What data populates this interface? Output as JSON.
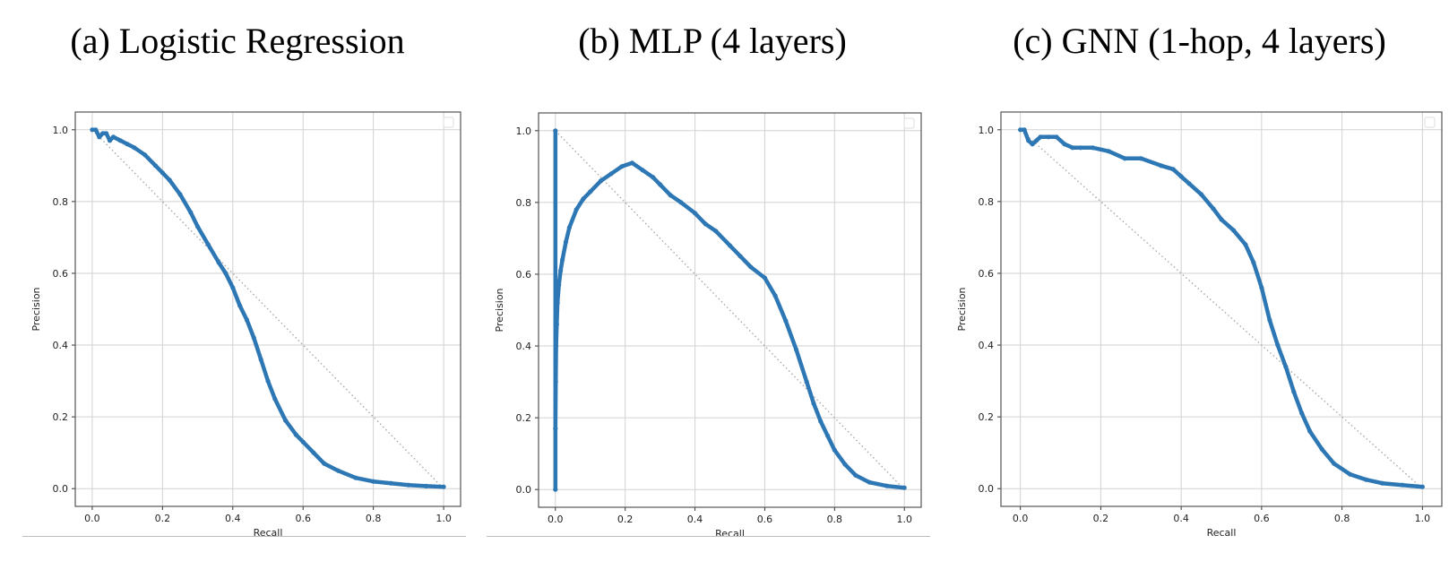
{
  "colors": {
    "series": "#2d77b4",
    "grid": "#d2d2d2",
    "diagonal": "#a8a8a8",
    "frame": "#555555"
  },
  "chart_data": [
    {
      "type": "line",
      "title": "(a) Logistic Regression",
      "xlabel": "Recall",
      "ylabel": "Precision",
      "xlim": [
        0.0,
        1.0
      ],
      "ylim": [
        0.0,
        1.0
      ],
      "xticks": [
        "0.0",
        "0.2",
        "0.4",
        "0.6",
        "0.8",
        "1.0"
      ],
      "yticks": [
        "0.0",
        "0.2",
        "0.4",
        "0.6",
        "0.8",
        "1.0"
      ],
      "grid": true,
      "legend": "top-right (empty)",
      "diagonal": [
        [
          0.0,
          1.0
        ],
        [
          1.0,
          0.0
        ]
      ],
      "series": [
        {
          "x": [
            0.0,
            0.01,
            0.02,
            0.03,
            0.04,
            0.05,
            0.06,
            0.08,
            0.1,
            0.12,
            0.15,
            0.18,
            0.2,
            0.22,
            0.25,
            0.28,
            0.3,
            0.33,
            0.36,
            0.38,
            0.4,
            0.42,
            0.44,
            0.46,
            0.48,
            0.5,
            0.52,
            0.55,
            0.58,
            0.6,
            0.63,
            0.66,
            0.7,
            0.75,
            0.8,
            0.85,
            0.9,
            0.95,
            1.0
          ],
          "y": [
            1.0,
            1.0,
            0.98,
            0.99,
            0.99,
            0.97,
            0.98,
            0.97,
            0.96,
            0.95,
            0.93,
            0.9,
            0.88,
            0.86,
            0.82,
            0.77,
            0.73,
            0.68,
            0.63,
            0.6,
            0.56,
            0.51,
            0.47,
            0.42,
            0.36,
            0.3,
            0.25,
            0.19,
            0.15,
            0.13,
            0.1,
            0.07,
            0.05,
            0.03,
            0.02,
            0.015,
            0.01,
            0.007,
            0.005
          ]
        }
      ]
    },
    {
      "type": "line",
      "title": "(b) MLP (4 layers)",
      "xlabel": "Recall",
      "ylabel": "Precision",
      "xlim": [
        0.0,
        1.0
      ],
      "ylim": [
        0.0,
        1.0
      ],
      "xticks": [
        "0.0",
        "0.2",
        "0.4",
        "0.6",
        "0.8",
        "1.0"
      ],
      "yticks": [
        "0.0",
        "0.2",
        "0.4",
        "0.6",
        "0.8",
        "1.0"
      ],
      "grid": true,
      "legend": "top-right (empty)",
      "diagonal": [
        [
          0.0,
          1.0
        ],
        [
          1.0,
          0.0
        ]
      ],
      "series": [
        {
          "x": [
            0.0,
            0.0,
            0.0,
            0.001,
            0.002,
            0.004,
            0.006,
            0.01,
            0.015,
            0.02,
            0.03,
            0.04,
            0.06,
            0.08,
            0.1,
            0.13,
            0.16,
            0.19,
            0.22,
            0.25,
            0.28,
            0.3,
            0.33,
            0.36,
            0.4,
            0.43,
            0.46,
            0.5,
            0.53,
            0.56,
            0.6,
            0.63,
            0.66,
            0.69,
            0.72,
            0.74,
            0.76,
            0.78,
            0.8,
            0.83,
            0.86,
            0.9,
            0.95,
            1.0
          ],
          "y": [
            0.0,
            1.0,
            0.17,
            0.3,
            0.4,
            0.46,
            0.52,
            0.57,
            0.61,
            0.64,
            0.69,
            0.73,
            0.78,
            0.81,
            0.83,
            0.86,
            0.88,
            0.9,
            0.91,
            0.89,
            0.87,
            0.85,
            0.82,
            0.8,
            0.77,
            0.74,
            0.72,
            0.68,
            0.65,
            0.62,
            0.59,
            0.54,
            0.47,
            0.39,
            0.3,
            0.24,
            0.19,
            0.15,
            0.11,
            0.07,
            0.04,
            0.02,
            0.01,
            0.005
          ]
        }
      ]
    },
    {
      "type": "line",
      "title": "(c) GNN (1-hop, 4 layers)",
      "xlabel": "Recall",
      "ylabel": "Precision",
      "xlim": [
        0.0,
        1.0
      ],
      "ylim": [
        0.0,
        1.0
      ],
      "xticks": [
        "0.0",
        "0.2",
        "0.4",
        "0.6",
        "0.8",
        "1.0"
      ],
      "yticks": [
        "0.0",
        "0.2",
        "0.4",
        "0.6",
        "0.8",
        "1.0"
      ],
      "grid": true,
      "legend": "top-right (empty)",
      "diagonal": [
        [
          0.0,
          1.0
        ],
        [
          1.0,
          0.0
        ]
      ],
      "series": [
        {
          "x": [
            0.0,
            0.01,
            0.02,
            0.03,
            0.04,
            0.05,
            0.07,
            0.09,
            0.11,
            0.13,
            0.15,
            0.18,
            0.22,
            0.26,
            0.3,
            0.35,
            0.38,
            0.4,
            0.42,
            0.45,
            0.48,
            0.5,
            0.53,
            0.56,
            0.58,
            0.6,
            0.62,
            0.64,
            0.66,
            0.68,
            0.7,
            0.72,
            0.75,
            0.78,
            0.82,
            0.86,
            0.9,
            0.95,
            1.0
          ],
          "y": [
            1.0,
            1.0,
            0.97,
            0.96,
            0.97,
            0.98,
            0.98,
            0.98,
            0.96,
            0.95,
            0.95,
            0.95,
            0.94,
            0.92,
            0.92,
            0.9,
            0.89,
            0.87,
            0.85,
            0.82,
            0.78,
            0.75,
            0.72,
            0.68,
            0.63,
            0.56,
            0.47,
            0.4,
            0.34,
            0.27,
            0.21,
            0.16,
            0.11,
            0.07,
            0.04,
            0.025,
            0.015,
            0.01,
            0.005
          ]
        }
      ]
    }
  ]
}
